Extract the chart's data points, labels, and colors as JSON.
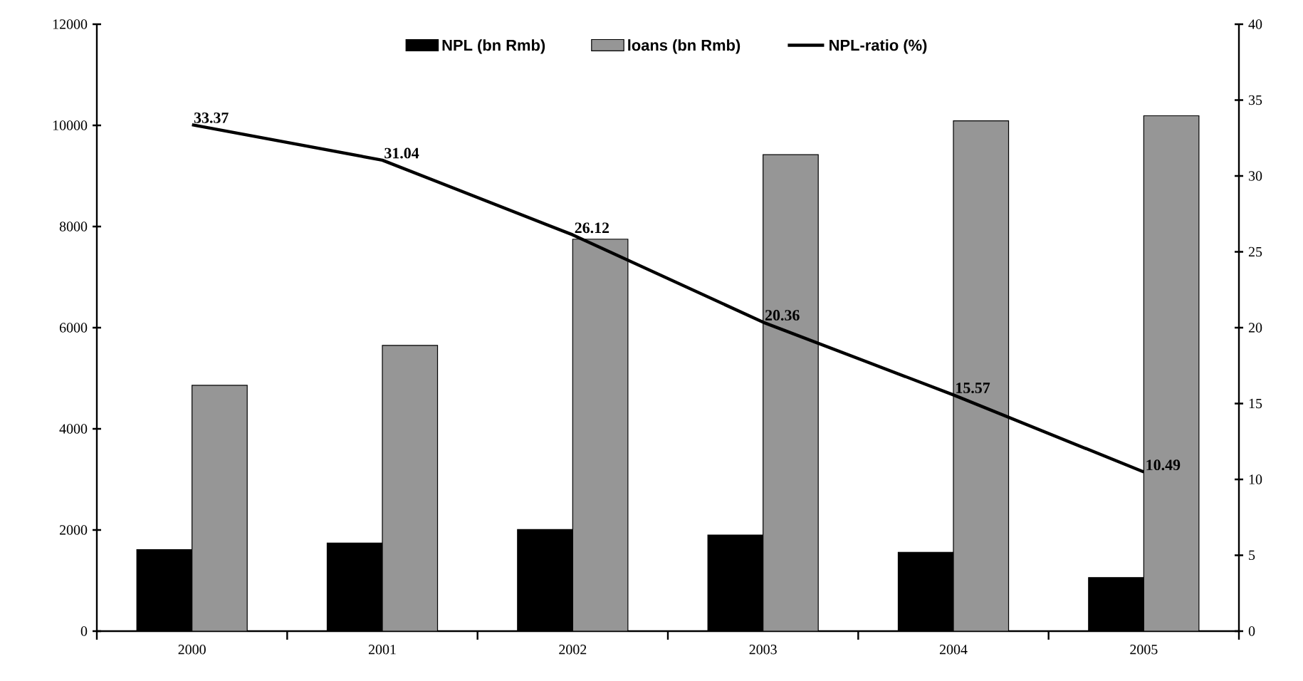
{
  "chart_data": {
    "type": "bar",
    "categories": [
      "2000",
      "2001",
      "2002",
      "2003",
      "2004",
      "2005"
    ],
    "series": [
      {
        "name": "NPL (bn Rmb)",
        "color": "#000000",
        "values": [
          1610,
          1740,
          2010,
          1900,
          1560,
          1060
        ]
      },
      {
        "name": "loans (bn Rmb)",
        "color": "#969696",
        "values": [
          4860,
          5650,
          7750,
          9420,
          10090,
          10190
        ]
      },
      {
        "name": "NPL-ratio (%)",
        "type": "line",
        "axis": "y2",
        "color": "#000000",
        "values": [
          33.37,
          31.04,
          26.12,
          20.36,
          15.57,
          10.49
        ],
        "value_labels": [
          "33.37",
          "31.04",
          "26.12",
          "20.36",
          "15.57",
          "10.49"
        ]
      }
    ],
    "ylim": [
      0,
      12000
    ],
    "yticks": [
      0,
      2000,
      4000,
      6000,
      8000,
      10000,
      12000
    ],
    "y2lim": [
      0,
      40
    ],
    "y2ticks": [
      0,
      5,
      10,
      15,
      20,
      25,
      30,
      35,
      40
    ],
    "legend": "top",
    "marker": "none",
    "line_style": "solid"
  }
}
